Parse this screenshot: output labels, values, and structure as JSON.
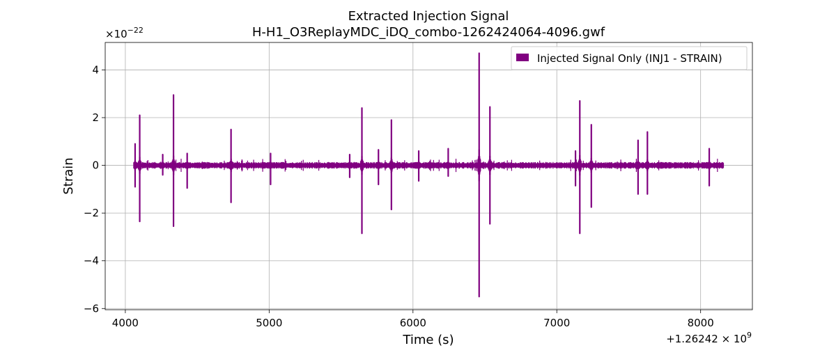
{
  "chart_data": {
    "type": "line",
    "title": "Extracted Injection Signal",
    "subtitle": "H-H1_O3ReplayMDC_iDQ_combo-1262424064-4096.gwf",
    "xlabel": "Time (s)",
    "ylabel": "Strain",
    "x_offset_label": "+1.26242",
    "x_offset_exp": "9",
    "y_scale_base": "×10",
    "y_scale_exp": "−22",
    "xlim": [
      3860,
      8360
    ],
    "ylim": [
      -6.05,
      5.15
    ],
    "xticks": [
      4000,
      5000,
      6000,
      7000,
      8000
    ],
    "xtick_labels": [
      "4000",
      "5000",
      "6000",
      "7000",
      "8000"
    ],
    "yticks": [
      -6,
      -4,
      -2,
      0,
      2,
      4
    ],
    "ytick_labels": [
      "−6",
      "−4",
      "−2",
      "0",
      "2",
      "4"
    ],
    "grid": true,
    "legend_position": "top-right",
    "series": [
      {
        "name": "Injected Signal Only (INJ1 - STRAIN)",
        "color": "#800080",
        "x_range": [
          4064,
          8160
        ],
        "baseline_noise_amplitude": 0.1,
        "spikes": [
          {
            "x": 4068,
            "max": 0.9,
            "min": -0.9
          },
          {
            "x": 4100,
            "max": 2.1,
            "min": -2.35
          },
          {
            "x": 4260,
            "max": 0.45,
            "min": -0.4
          },
          {
            "x": 4335,
            "max": 2.95,
            "min": -2.55
          },
          {
            "x": 4430,
            "max": 0.5,
            "min": -0.95
          },
          {
            "x": 4735,
            "max": 1.5,
            "min": -1.55
          },
          {
            "x": 5010,
            "max": 0.5,
            "min": -0.8
          },
          {
            "x": 5560,
            "max": 0.45,
            "min": -0.5
          },
          {
            "x": 5645,
            "max": 2.4,
            "min": -2.85
          },
          {
            "x": 5760,
            "max": 0.65,
            "min": -0.8
          },
          {
            "x": 5850,
            "max": 1.9,
            "min": -1.85
          },
          {
            "x": 6040,
            "max": 0.6,
            "min": -0.65
          },
          {
            "x": 6245,
            "max": 0.7,
            "min": -0.45
          },
          {
            "x": 6460,
            "max": 4.7,
            "min": -5.5
          },
          {
            "x": 6535,
            "max": 2.45,
            "min": -2.45
          },
          {
            "x": 7130,
            "max": 0.6,
            "min": -0.85
          },
          {
            "x": 7160,
            "max": 2.7,
            "min": -2.85
          },
          {
            "x": 7240,
            "max": 1.7,
            "min": -1.75
          },
          {
            "x": 7565,
            "max": 1.05,
            "min": -1.2
          },
          {
            "x": 7630,
            "max": 1.4,
            "min": -1.2
          },
          {
            "x": 8060,
            "max": 0.7,
            "min": -0.85
          }
        ]
      }
    ]
  }
}
